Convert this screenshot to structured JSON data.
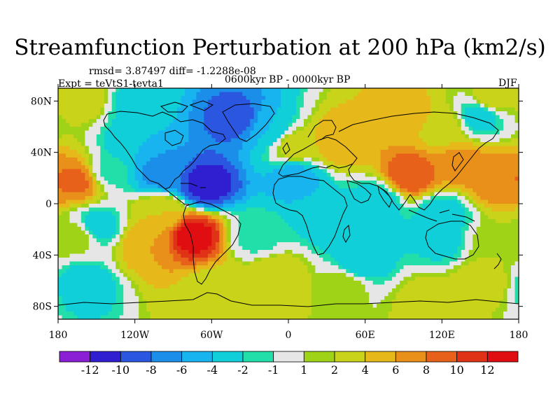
{
  "title": "Streamfunction Perturbation at 200 hPa (km2/s)",
  "stats_text": "rmsd= 3.87497 diff= -1.2288e-08",
  "experiment": "Expt = teVtS1-tevta1",
  "period": "0600kyr BP - 0000kyr BP",
  "season": "DJF",
  "chart_data": {
    "type": "heatmap",
    "projection": "cylindrical-equidistant",
    "x": {
      "range": [
        -180,
        180
      ],
      "ticks": [
        -180,
        -120,
        -60,
        0,
        60,
        120,
        180
      ],
      "tick_labels": [
        "180",
        "120W",
        "60W",
        "0",
        "60E",
        "120E",
        "180"
      ]
    },
    "y": {
      "range": [
        -90,
        90
      ],
      "ticks": [
        80,
        40,
        0,
        -40,
        -80
      ],
      "tick_labels": [
        "80N",
        "40N",
        "0",
        "40S",
        "80S"
      ]
    },
    "colorbar": {
      "levels": [
        -12,
        -10,
        -8,
        -6,
        -4,
        -2,
        -1,
        1,
        2,
        4,
        6,
        8,
        10,
        12
      ],
      "labels": [
        "-12",
        "-10",
        "-8",
        "-6",
        "-4",
        "-2",
        "-1",
        "1",
        "2",
        "4",
        "6",
        "8",
        "10",
        "12"
      ],
      "colors": [
        "#8a1fd6",
        "#2f1fd0",
        "#2b56e0",
        "#1a8ee8",
        "#18b4ef",
        "#10cfd8",
        "#22dfaa",
        "#e6e6e6",
        "#9fd318",
        "#c8d31a",
        "#e6b81a",
        "#e8901a",
        "#e8611a",
        "#e03216",
        "#e00e10"
      ]
    },
    "field_features": [
      {
        "lon": -165,
        "lat": 18,
        "value": 8.5
      },
      {
        "lon": -120,
        "lat": 78,
        "value": -3
      },
      {
        "lon": -120,
        "lat": 45,
        "value": -4
      },
      {
        "lon": -140,
        "lat": 25,
        "value": -1.5
      },
      {
        "lon": -100,
        "lat": 25,
        "value": -7
      },
      {
        "lon": -65,
        "lat": 15,
        "value": -11
      },
      {
        "lon": -40,
        "lat": 65,
        "value": -9
      },
      {
        "lon": -15,
        "lat": 58,
        "value": -4
      },
      {
        "lon": 5,
        "lat": 20,
        "value": -5
      },
      {
        "lon": 40,
        "lat": 48,
        "value": 6
      },
      {
        "lon": 5,
        "lat": 45,
        "value": 3
      },
      {
        "lon": 95,
        "lat": 22,
        "value": 9.5
      },
      {
        "lon": 135,
        "lat": 30,
        "value": 7
      },
      {
        "lon": 165,
        "lat": 18,
        "value": 8
      },
      {
        "lon": 95,
        "lat": 68,
        "value": 5
      },
      {
        "lon": 150,
        "lat": 68,
        "value": -3
      },
      {
        "lon": 160,
        "lat": 82,
        "value": 3
      },
      {
        "lon": -160,
        "lat": 82,
        "value": 3
      },
      {
        "lon": 120,
        "lat": 60,
        "value": 3
      },
      {
        "lon": 70,
        "lat": 2,
        "value": -3
      },
      {
        "lon": 120,
        "lat": -8,
        "value": -3
      },
      {
        "lon": -150,
        "lat": -18,
        "value": -3
      },
      {
        "lon": -165,
        "lat": -25,
        "value": 2
      },
      {
        "lon": -75,
        "lat": -25,
        "value": 13
      },
      {
        "lon": -100,
        "lat": -8,
        "value": 4
      },
      {
        "lon": -110,
        "lat": -32,
        "value": 6
      },
      {
        "lon": -25,
        "lat": -25,
        "value": -1.5
      },
      {
        "lon": 30,
        "lat": -10,
        "value": -3
      },
      {
        "lon": 55,
        "lat": -25,
        "value": -3.5
      },
      {
        "lon": 120,
        "lat": -30,
        "value": -2.5
      },
      {
        "lon": 160,
        "lat": -32,
        "value": 2
      },
      {
        "lon": 55,
        "lat": -48,
        "value": -3.5
      },
      {
        "lon": -10,
        "lat": -58,
        "value": 4
      },
      {
        "lon": 45,
        "lat": -62,
        "value": 2
      },
      {
        "lon": 150,
        "lat": -60,
        "value": 3
      },
      {
        "lon": -60,
        "lat": -68,
        "value": 3
      },
      {
        "lon": -160,
        "lat": -62,
        "value": -3
      },
      {
        "lon": 110,
        "lat": -75,
        "value": 3
      }
    ]
  }
}
